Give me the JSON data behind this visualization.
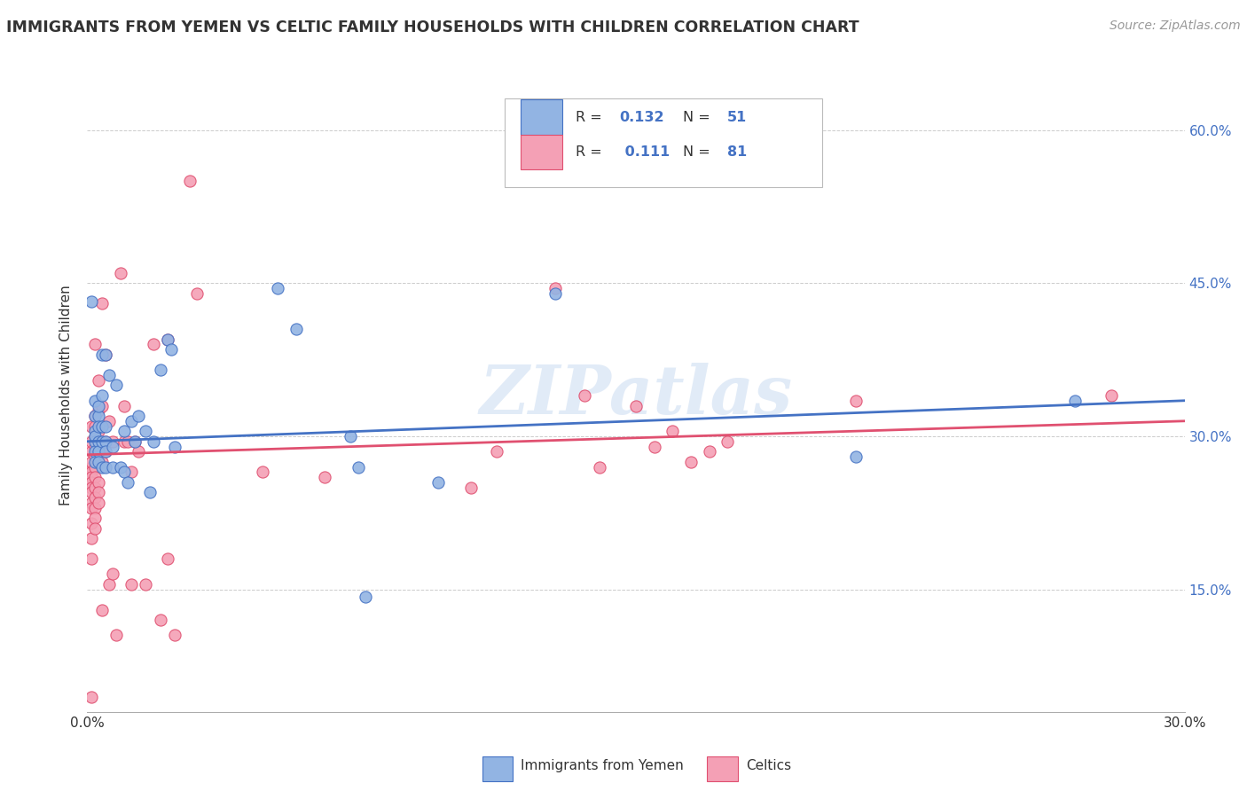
{
  "title": "IMMIGRANTS FROM YEMEN VS CELTIC FAMILY HOUSEHOLDS WITH CHILDREN CORRELATION CHART",
  "source": "Source: ZipAtlas.com",
  "ylabel": "Family Households with Children",
  "y_ticks": [
    0.15,
    0.3,
    0.45,
    0.6
  ],
  "y_tick_labels": [
    "15.0%",
    "30.0%",
    "45.0%",
    "60.0%"
  ],
  "x_min": 0.0,
  "x_max": 0.3,
  "y_min": 0.03,
  "y_max": 0.65,
  "legend_r1": "R = 0.132",
  "legend_n1": "N = 51",
  "legend_r2": "R =  0.111",
  "legend_n2": "N = 81",
  "blue_color": "#92b4e3",
  "pink_color": "#f4a0b5",
  "line_blue": "#4472c4",
  "line_pink": "#e05070",
  "watermark": "ZIPatlas",
  "text_dark": "#333333",
  "text_blue": "#4472c4",
  "text_source": "#999999",
  "grid_color": "#cccccc",
  "blue_scatter": [
    [
      0.001,
      0.432
    ],
    [
      0.002,
      0.305
    ],
    [
      0.002,
      0.335
    ],
    [
      0.002,
      0.32
    ],
    [
      0.002,
      0.295
    ],
    [
      0.002,
      0.285
    ],
    [
      0.002,
      0.275
    ],
    [
      0.002,
      0.3
    ],
    [
      0.003,
      0.32
    ],
    [
      0.003,
      0.31
    ],
    [
      0.003,
      0.33
    ],
    [
      0.003,
      0.295
    ],
    [
      0.003,
      0.285
    ],
    [
      0.003,
      0.275
    ],
    [
      0.004,
      0.34
    ],
    [
      0.004,
      0.38
    ],
    [
      0.004,
      0.31
    ],
    [
      0.004,
      0.295
    ],
    [
      0.004,
      0.27
    ],
    [
      0.005,
      0.38
    ],
    [
      0.005,
      0.31
    ],
    [
      0.005,
      0.295
    ],
    [
      0.005,
      0.27
    ],
    [
      0.005,
      0.285
    ],
    [
      0.006,
      0.36
    ],
    [
      0.007,
      0.29
    ],
    [
      0.007,
      0.27
    ],
    [
      0.008,
      0.35
    ],
    [
      0.009,
      0.27
    ],
    [
      0.01,
      0.305
    ],
    [
      0.01,
      0.265
    ],
    [
      0.011,
      0.255
    ],
    [
      0.012,
      0.315
    ],
    [
      0.013,
      0.295
    ],
    [
      0.014,
      0.32
    ],
    [
      0.016,
      0.305
    ],
    [
      0.017,
      0.245
    ],
    [
      0.018,
      0.295
    ],
    [
      0.02,
      0.365
    ],
    [
      0.022,
      0.395
    ],
    [
      0.023,
      0.385
    ],
    [
      0.024,
      0.29
    ],
    [
      0.052,
      0.445
    ],
    [
      0.057,
      0.405
    ],
    [
      0.072,
      0.3
    ],
    [
      0.074,
      0.27
    ],
    [
      0.076,
      0.143
    ],
    [
      0.096,
      0.255
    ],
    [
      0.128,
      0.44
    ],
    [
      0.21,
      0.28
    ],
    [
      0.27,
      0.335
    ]
  ],
  "pink_scatter": [
    [
      0.001,
      0.285
    ],
    [
      0.001,
      0.295
    ],
    [
      0.001,
      0.31
    ],
    [
      0.001,
      0.27
    ],
    [
      0.001,
      0.265
    ],
    [
      0.001,
      0.275
    ],
    [
      0.001,
      0.26
    ],
    [
      0.001,
      0.255
    ],
    [
      0.001,
      0.25
    ],
    [
      0.001,
      0.245
    ],
    [
      0.001,
      0.235
    ],
    [
      0.001,
      0.23
    ],
    [
      0.001,
      0.215
    ],
    [
      0.001,
      0.2
    ],
    [
      0.001,
      0.18
    ],
    [
      0.001,
      0.045
    ],
    [
      0.002,
      0.32
    ],
    [
      0.002,
      0.31
    ],
    [
      0.002,
      0.3
    ],
    [
      0.002,
      0.29
    ],
    [
      0.002,
      0.28
    ],
    [
      0.002,
      0.27
    ],
    [
      0.002,
      0.26
    ],
    [
      0.002,
      0.25
    ],
    [
      0.002,
      0.24
    ],
    [
      0.002,
      0.23
    ],
    [
      0.002,
      0.22
    ],
    [
      0.002,
      0.21
    ],
    [
      0.002,
      0.39
    ],
    [
      0.003,
      0.355
    ],
    [
      0.003,
      0.325
    ],
    [
      0.003,
      0.305
    ],
    [
      0.003,
      0.29
    ],
    [
      0.003,
      0.275
    ],
    [
      0.003,
      0.255
    ],
    [
      0.003,
      0.245
    ],
    [
      0.003,
      0.235
    ],
    [
      0.004,
      0.43
    ],
    [
      0.004,
      0.33
    ],
    [
      0.004,
      0.29
    ],
    [
      0.004,
      0.275
    ],
    [
      0.004,
      0.13
    ],
    [
      0.005,
      0.38
    ],
    [
      0.005,
      0.295
    ],
    [
      0.005,
      0.285
    ],
    [
      0.006,
      0.315
    ],
    [
      0.006,
      0.155
    ],
    [
      0.007,
      0.295
    ],
    [
      0.007,
      0.165
    ],
    [
      0.008,
      0.105
    ],
    [
      0.009,
      0.46
    ],
    [
      0.01,
      0.33
    ],
    [
      0.01,
      0.295
    ],
    [
      0.011,
      0.295
    ],
    [
      0.012,
      0.265
    ],
    [
      0.012,
      0.155
    ],
    [
      0.013,
      0.295
    ],
    [
      0.014,
      0.285
    ],
    [
      0.016,
      0.155
    ],
    [
      0.018,
      0.39
    ],
    [
      0.02,
      0.12
    ],
    [
      0.022,
      0.18
    ],
    [
      0.022,
      0.395
    ],
    [
      0.024,
      0.105
    ],
    [
      0.028,
      0.55
    ],
    [
      0.03,
      0.44
    ],
    [
      0.048,
      0.265
    ],
    [
      0.065,
      0.26
    ],
    [
      0.105,
      0.25
    ],
    [
      0.112,
      0.285
    ],
    [
      0.128,
      0.445
    ],
    [
      0.136,
      0.34
    ],
    [
      0.14,
      0.27
    ],
    [
      0.15,
      0.33
    ],
    [
      0.155,
      0.29
    ],
    [
      0.16,
      0.305
    ],
    [
      0.165,
      0.275
    ],
    [
      0.17,
      0.285
    ],
    [
      0.175,
      0.295
    ],
    [
      0.21,
      0.335
    ],
    [
      0.28,
      0.34
    ]
  ],
  "blue_line_x": [
    0.0,
    0.3
  ],
  "blue_line_y": [
    0.295,
    0.335
  ],
  "pink_line_x": [
    0.0,
    0.3
  ],
  "pink_line_y": [
    0.282,
    0.315
  ]
}
